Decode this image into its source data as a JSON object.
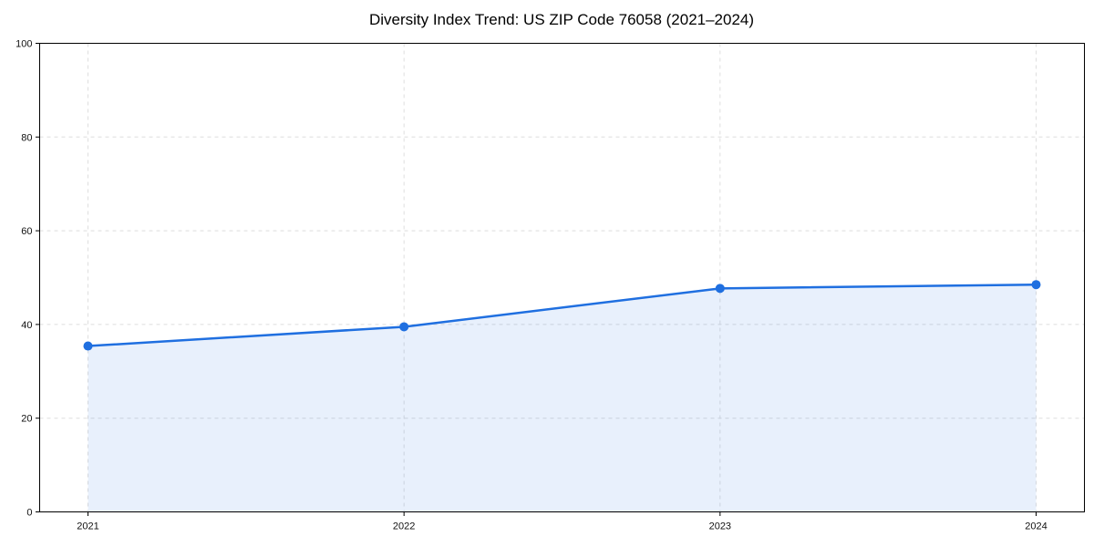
{
  "chart_data": {
    "type": "area",
    "title": "Diversity Index Trend: US ZIP Code 76058 (2021–2024)",
    "categories": [
      "2021",
      "2022",
      "2023",
      "2024"
    ],
    "series": [
      {
        "name": "Diversity Index",
        "values": [
          35.4,
          39.5,
          47.7,
          48.5
        ]
      }
    ],
    "xlabel": "",
    "ylabel": "",
    "ylim": [
      0,
      100
    ],
    "y_ticks": [
      0,
      20,
      40,
      60,
      80,
      100
    ],
    "grid": "dashed horizontal and vertical",
    "legend_position": "none",
    "colors": {
      "line": "#1f6fe0",
      "marker": "#1f6fe0",
      "fill_opacity": 0.1,
      "grid": "#dedede",
      "axis": "#000000",
      "tick_text": "#111111",
      "background": "#ffffff"
    }
  }
}
